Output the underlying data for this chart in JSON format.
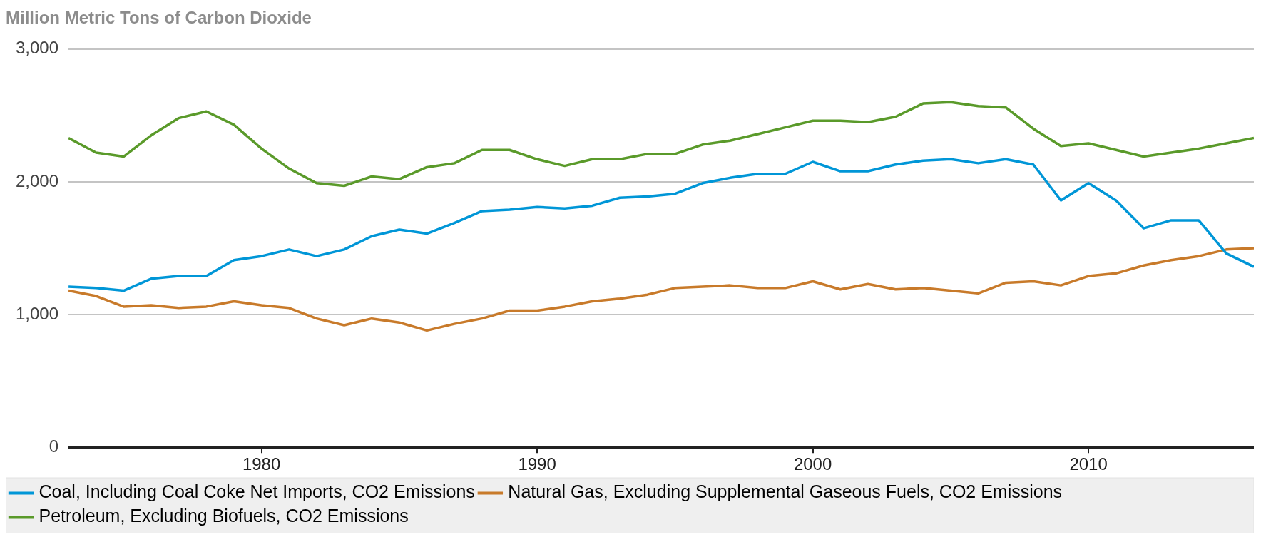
{
  "chart_data": {
    "type": "line",
    "title": "Million Metric Tons of Carbon Dioxide",
    "x": [
      1973,
      1974,
      1975,
      1976,
      1977,
      1978,
      1979,
      1980,
      1981,
      1982,
      1983,
      1984,
      1985,
      1986,
      1987,
      1988,
      1989,
      1990,
      1991,
      1992,
      1993,
      1994,
      1995,
      1996,
      1997,
      1998,
      1999,
      2000,
      2001,
      2002,
      2003,
      2004,
      2005,
      2006,
      2007,
      2008,
      2009,
      2010,
      2011,
      2012,
      2013,
      2014,
      2015,
      2016
    ],
    "series": [
      {
        "name": "Coal, Including Coal Coke Net Imports, CO2 Emissions",
        "color": "#0096d7",
        "values": [
          1210,
          1200,
          1180,
          1270,
          1290,
          1290,
          1410,
          1440,
          1490,
          1440,
          1490,
          1590,
          1640,
          1610,
          1690,
          1780,
          1790,
          1810,
          1800,
          1820,
          1880,
          1890,
          1910,
          1990,
          2030,
          2060,
          2060,
          2150,
          2080,
          2080,
          2130,
          2160,
          2170,
          2140,
          2170,
          2130,
          1860,
          1990,
          1860,
          1650,
          1710,
          1710,
          1460,
          1360
        ]
      },
      {
        "name": "Natural Gas, Excluding Supplemental Gaseous Fuels, CO2 Emissions",
        "color": "#c87a2a",
        "values": [
          1180,
          1140,
          1060,
          1070,
          1050,
          1060,
          1100,
          1070,
          1050,
          970,
          920,
          970,
          940,
          880,
          930,
          970,
          1030,
          1030,
          1060,
          1100,
          1120,
          1150,
          1200,
          1210,
          1220,
          1200,
          1200,
          1250,
          1190,
          1230,
          1190,
          1200,
          1180,
          1160,
          1240,
          1250,
          1220,
          1290,
          1310,
          1370,
          1410,
          1440,
          1490,
          1500
        ]
      },
      {
        "name": "Petroleum, Excluding Biofuels, CO2 Emissions",
        "color": "#5a9a2a",
        "values": [
          2330,
          2220,
          2190,
          2350,
          2480,
          2530,
          2430,
          2250,
          2100,
          1990,
          1970,
          2040,
          2020,
          2110,
          2140,
          2240,
          2240,
          2170,
          2120,
          2170,
          2170,
          2210,
          2210,
          2280,
          2310,
          2360,
          2410,
          2460,
          2460,
          2450,
          2490,
          2590,
          2600,
          2570,
          2560,
          2400,
          2270,
          2290,
          2240,
          2190,
          2220,
          2250,
          2290,
          2330
        ]
      }
    ],
    "xlim": [
      1973,
      2016
    ],
    "xticks": [
      1980,
      1990,
      2000,
      2010
    ],
    "ylim": [
      0,
      3000
    ],
    "yticks": [
      0,
      {
        "value": 1000,
        "label": "1,000"
      },
      {
        "value": 2000,
        "label": "2,000"
      },
      {
        "value": 3000,
        "label": "3,000"
      }
    ],
    "grid": "y",
    "legend": "bottom",
    "marker": "none",
    "line_style": "solid"
  }
}
